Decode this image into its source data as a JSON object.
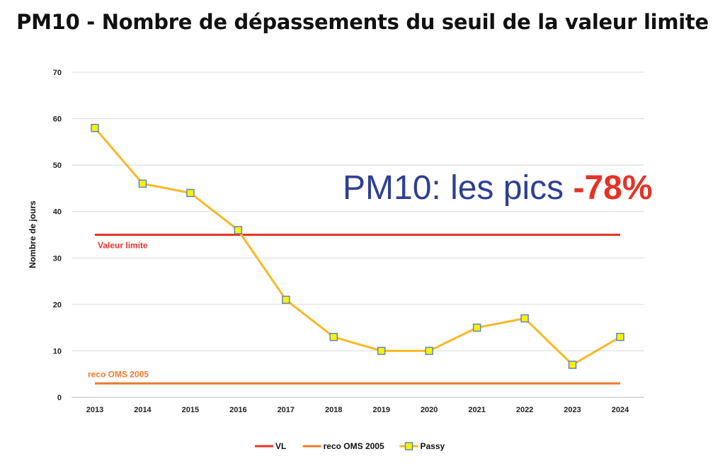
{
  "title": "PM10 - Nombre de dépassements du seuil de la valeur limite",
  "annotation": {
    "text": "PM10: les pics",
    "highlight": "-78%"
  },
  "chart_data": {
    "type": "line",
    "title": "PM10 - Nombre de dépassements du seuil de la valeur limite",
    "xlabel": "",
    "ylabel": "Nombre de jours",
    "ylim": [
      0,
      70
    ],
    "yticks": [
      0,
      10,
      20,
      30,
      40,
      50,
      60,
      70
    ],
    "grid": true,
    "legend": "bottom",
    "categories": [
      "2013",
      "2014",
      "2015",
      "2016",
      "2017",
      "2018",
      "2019",
      "2020",
      "2021",
      "2022",
      "2023",
      "2024"
    ],
    "series": [
      {
        "name": "VL",
        "values": [
          35,
          35,
          35,
          35,
          35,
          35,
          35,
          35,
          35,
          35,
          35,
          35
        ],
        "color": "#e5352a",
        "label": "Valeur limite"
      },
      {
        "name": "reco OMS 2005",
        "values": [
          3,
          3,
          3,
          3,
          3,
          3,
          3,
          3,
          3,
          3,
          3,
          3
        ],
        "color": "#ee7a2e",
        "label": "reco OMS 2005"
      },
      {
        "name": "Passy",
        "values": [
          58,
          46,
          44,
          36,
          21,
          13,
          10,
          10,
          15,
          17,
          7,
          13
        ],
        "color": "#f7b924",
        "marker_fill": "#fff200",
        "marker_stroke": "#5b86c5"
      }
    ]
  }
}
